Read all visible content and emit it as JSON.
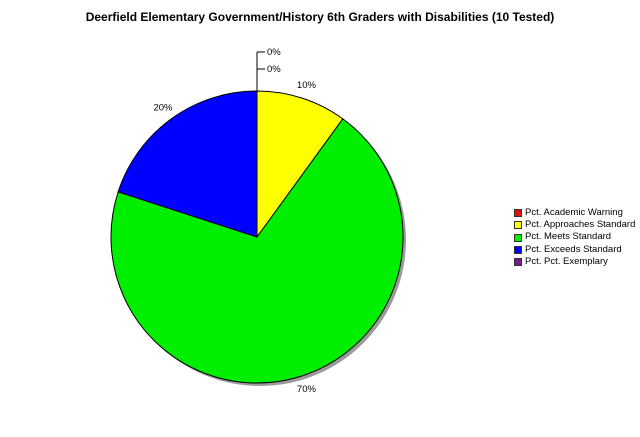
{
  "chart_data": {
    "type": "pie",
    "title": "Deerfield Elementary Government/History 6th Graders with Disabilities (10 Tested)",
    "slices": [
      {
        "label": "Pct. Academic Warning",
        "value": 0,
        "display": "0%",
        "color": "#e01010"
      },
      {
        "label": "Pct. Approaches Standard",
        "value": 10,
        "display": "10%",
        "color": "#ffff00"
      },
      {
        "label": "Pct. Meets Standard",
        "value": 70,
        "display": "70%",
        "color": "#00ee00"
      },
      {
        "label": "Pct. Exceeds Standard",
        "value": 20,
        "display": "20%",
        "color": "#0000ff"
      },
      {
        "label": "Pct. Pct. Exemplary",
        "value": 0,
        "display": "0%",
        "color": "#7a1a8a"
      }
    ],
    "legend_position": "right"
  }
}
